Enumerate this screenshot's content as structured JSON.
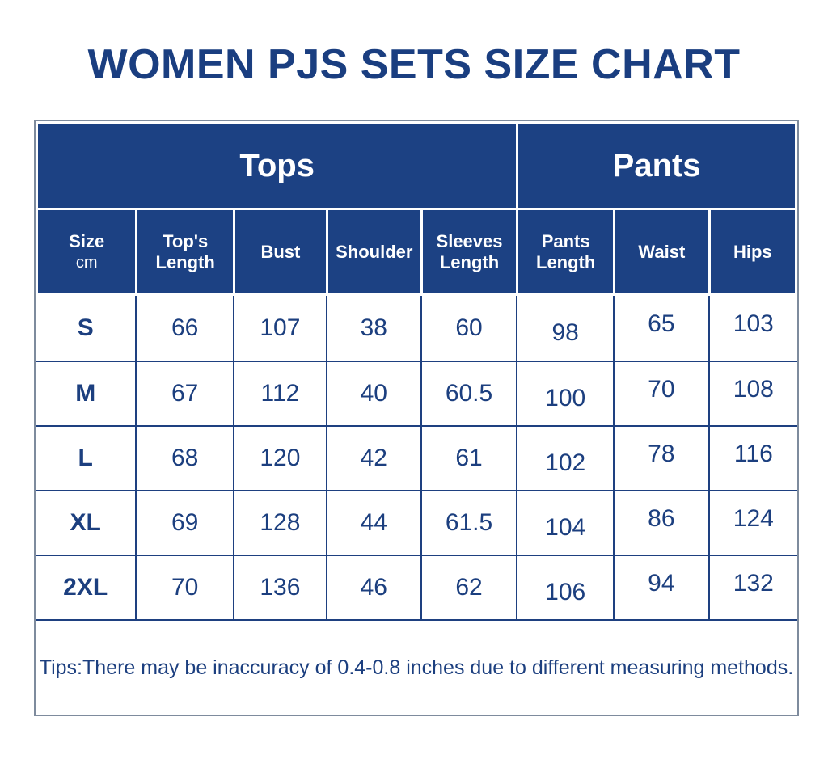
{
  "page": {
    "title": "WOMEN PJS SETS SIZE CHART"
  },
  "colors": {
    "header_background_navy": "#1c4183",
    "text_navy": "#1c3f7f",
    "grid_line_navy": "#1e4080",
    "outer_border_gray": "#7e8b9d",
    "header_text": "#ffffff",
    "title_navy": "#1a3e80"
  },
  "chart_data": {
    "type": "table",
    "title": "WOMEN PJS SETS SIZE CHART",
    "unit": "cm",
    "groups": [
      {
        "label": "Tops",
        "colspan": 5
      },
      {
        "label": "Pants",
        "colspan": 3
      }
    ],
    "columns": [
      "Size",
      "Top's Length",
      "Bust",
      "Shoulder",
      "Sleeves Length",
      "Pants Length",
      "Waist",
      "Hips"
    ],
    "rows": [
      {
        "size": "S",
        "values": [
          66,
          107,
          38,
          60,
          98,
          65,
          103
        ]
      },
      {
        "size": "M",
        "values": [
          67,
          112,
          40,
          60.5,
          100,
          70,
          108
        ]
      },
      {
        "size": "L",
        "values": [
          68,
          120,
          42,
          61,
          102,
          78,
          116
        ]
      },
      {
        "size": "XL",
        "values": [
          69,
          128,
          44,
          61.5,
          104,
          86,
          124
        ]
      },
      {
        "size": "2XL",
        "values": [
          70,
          136,
          46,
          62,
          106,
          94,
          132
        ]
      }
    ],
    "tips": "Tips:There may be inaccuracy of 0.4-0.8 inches due to different measuring methods."
  }
}
